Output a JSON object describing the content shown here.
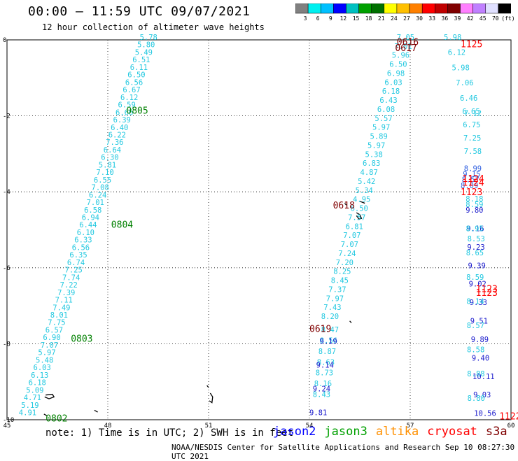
{
  "header": {
    "title": "00:00 – 11:59 UTC 09/07/2021",
    "subtitle": "12 hour collection of altimeter wave heights"
  },
  "colorbar": {
    "colors": [
      "#808080",
      "#00f0f0",
      "#00c0ff",
      "#0000ff",
      "#00c0c0",
      "#00a000",
      "#007000",
      "#ffff00",
      "#ffc000",
      "#ff8000",
      "#ff0000",
      "#c00000",
      "#800000",
      "#ff80ff",
      "#c080ff",
      "#e0e0ff",
      "#000000"
    ],
    "labels": [
      "3",
      "6",
      "9",
      "12",
      "15",
      "18",
      "21",
      "24",
      "27",
      "30",
      "33",
      "36",
      "39",
      "42",
      "45",
      "70",
      "(ft)"
    ]
  },
  "map": {
    "x_ticks": [
      "45",
      "48",
      "51",
      "54",
      "57",
      "60"
    ],
    "y_ticks": [
      "0",
      "-2",
      "-4",
      "-6",
      "-8",
      "-10"
    ],
    "lon_range": [
      45,
      60
    ],
    "lat_range": [
      -10,
      0
    ]
  },
  "tracks": [
    {
      "color": "#22c8e0",
      "lon_start": 48.95,
      "lat_start": 0.0,
      "lon_end": 45.35,
      "lat_end": -9.88,
      "values": [
        "5.78",
        "5.80",
        "5.49",
        "6.51",
        "6.11",
        "6.50",
        "6.56",
        "6.67",
        "6.12",
        "6.59",
        "6.66",
        "6.39",
        "6.40",
        "6.22",
        "7.36",
        "6.64",
        "6.30",
        "5.81",
        "7.10",
        "6.55",
        "7.08",
        "6.24",
        "7.01",
        "6.58",
        "6.94",
        "6.44",
        "6.10",
        "6.33",
        "6.56",
        "6.35",
        "6.74",
        "7.25",
        "7.74",
        "7.22",
        "7.39",
        "7.11",
        "7.49",
        "8.01",
        "7.75",
        "6.57",
        "6.90",
        "7.07",
        "5.97",
        "5.48",
        "6.03",
        "6.13",
        "6.18",
        "5.09",
        "4.71",
        "5.19",
        "4.91"
      ]
    },
    {
      "color": "#22c8e0",
      "lon_start": 56.6,
      "lat_start": 0.0,
      "lon_end": 54.35,
      "lat_end": -7.35,
      "values": [
        "7.05",
        "7.01",
        "5.96",
        "6.50",
        "6.98",
        "6.03",
        "6.18",
        "6.43",
        "6.08",
        "5.57",
        "5.97",
        "5.89",
        "5.97",
        "5.38",
        "6.83",
        "4.87",
        "5.42",
        "5.34",
        "4.95",
        "6.50",
        "7.57",
        "6.81",
        "7.07",
        "7.07",
        "7.24",
        "7.20",
        "8.25",
        "8.45",
        "7.37",
        "7.97",
        "7.43",
        "8.20"
      ]
    },
    {
      "color": "#22c8e0",
      "lon_start": 54.35,
      "lat_start": -7.7,
      "lon_end": 54.1,
      "lat_end": -9.4,
      "values": [
        "8.47",
        "8.56",
        "8.87",
        "8.63",
        "8.73",
        "8.16",
        "8.43"
      ]
    },
    {
      "color": "#1a1acc",
      "lon_start": 54.3,
      "lat_start": -8.0,
      "lon_end": 54.0,
      "lat_end": -9.88,
      "values": [
        "9.19",
        "9.14",
        "9.24",
        "9.81"
      ]
    },
    {
      "color": "#22c8e0",
      "lon_start": 58.0,
      "lat_start": 0.0,
      "lon_end": 58.6,
      "lat_end": -2.0,
      "values": [
        "5.98",
        "6.12",
        "5.98",
        "7.06",
        "6.46",
        "7.12"
      ]
    },
    {
      "color": "#22c8e0",
      "lon_start": 58.55,
      "lat_start": -1.95,
      "lon_end": 58.6,
      "lat_end": -3.0,
      "values": [
        "6.65",
        "6.75",
        "7.25",
        "7.58"
      ]
    },
    {
      "color": "#3060e0",
      "lon_start": 58.6,
      "lat_start": -3.45,
      "lon_end": 58.5,
      "lat_end": -3.9,
      "values": [
        "8.99",
        "9.15",
        "8.57",
        "8.09"
      ]
    },
    {
      "color": "#22c8e0",
      "lon_start": 58.65,
      "lat_start": -4.25,
      "lon_end": 58.7,
      "lat_end": -5.3,
      "values": [
        "8.18",
        "8.53"
      ]
    },
    {
      "color": "#1a1acc",
      "lon_start": 58.65,
      "lat_start": -4.55,
      "lon_end": 58.9,
      "lat_end": -9.9,
      "values": [
        "9.80",
        "9.16",
        "9.23",
        "9.39",
        "9.02",
        "9.33",
        "9.51",
        "9.89",
        "9.40",
        "10.11",
        "9.03",
        "10.56"
      ]
    },
    {
      "color": "#22c8e0",
      "lon_start": 58.65,
      "lat_start": -4.4,
      "lon_end": 58.7,
      "lat_end": -9.5,
      "values": [
        "8.59",
        "8.95",
        "8.65",
        "8.59",
        "8.14",
        "8.57",
        "8.58",
        "8.88",
        "8.80"
      ]
    }
  ],
  "pass_labels": [
    {
      "text": "0805",
      "color": "#008000",
      "lon": 48.55,
      "lat": -1.85
    },
    {
      "text": "0804",
      "color": "#008000",
      "lon": 48.1,
      "lat": -4.85
    },
    {
      "text": "0803",
      "color": "#008000",
      "lon": 46.9,
      "lat": -7.85
    },
    {
      "text": "0802",
      "color": "#008000",
      "lon": 46.15,
      "lat": -9.95
    },
    {
      "text": "0616",
      "color": "#800000",
      "lon": 56.6,
      "lat": -0.05
    },
    {
      "text": "0617",
      "color": "#800000",
      "lon": 56.55,
      "lat": -0.2
    },
    {
      "text": "0618",
      "color": "#800000",
      "lon": 54.7,
      "lat": -4.35
    },
    {
      "text": "0619",
      "color": "#800000",
      "lon": 54.0,
      "lat": -7.6
    },
    {
      "text": "1125",
      "color": "#ff0000",
      "lon": 58.5,
      "lat": -0.1
    },
    {
      "text": "1124",
      "color": "#ff0000",
      "lon": 58.55,
      "lat": -3.65
    },
    {
      "text": "1124",
      "color": "#ff0000",
      "lon": 58.55,
      "lat": -3.75
    },
    {
      "text": "1123",
      "color": "#ff0000",
      "lon": 58.5,
      "lat": -4.0
    },
    {
      "text": "1123",
      "color": "#ff0000",
      "lon": 58.95,
      "lat": -6.55
    },
    {
      "text": "1123",
      "color": "#ff0000",
      "lon": 58.95,
      "lat": -6.65
    },
    {
      "text": "1122",
      "color": "#ff0000",
      "lon": 59.65,
      "lat": -9.9
    }
  ],
  "legend": {
    "note": "note: 1) Time is in UTC; 2) SWH is in feet",
    "satellites": [
      {
        "name": "jason2",
        "color": "#0000ff"
      },
      {
        "name": "jason3",
        "color": "#00a000"
      },
      {
        "name": "altika",
        "color": "#ff9000"
      },
      {
        "name": "cryosat",
        "color": "#ff0000"
      },
      {
        "name": "s3a",
        "color": "#800000"
      }
    ],
    "credit": "NOAA/NESDIS Center for Satellite Applications and Research   Sep 10 08:27:30 UTC 2021"
  }
}
